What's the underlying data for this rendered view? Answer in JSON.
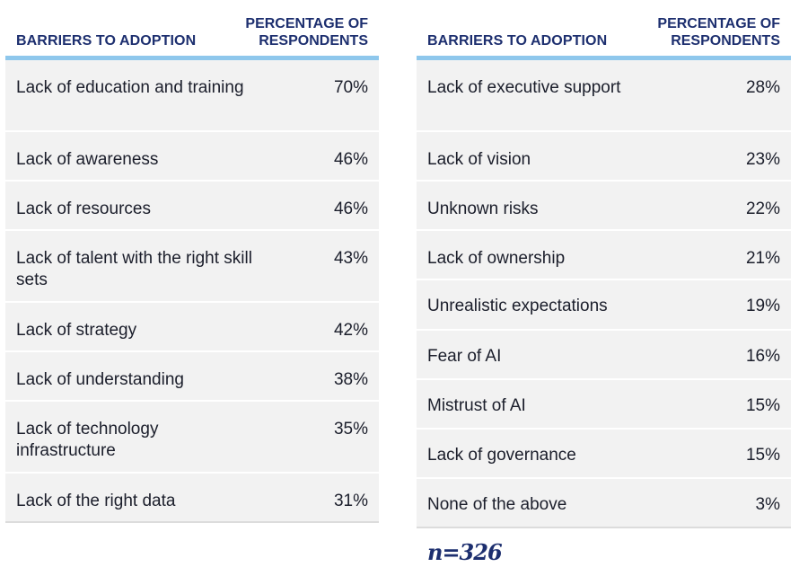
{
  "left_table": {
    "header": {
      "col1": "BARRIERS TO ADOPTION",
      "col2_line1": "PERCENTAGE OF",
      "col2_line2": "RESPONDENTS"
    },
    "rows": [
      {
        "label": "Lack of education and training",
        "value": "70%"
      },
      {
        "label": "Lack of awareness",
        "value": "46%"
      },
      {
        "label": "Lack of resources",
        "value": "46%"
      },
      {
        "label": "Lack of talent with the right skill sets",
        "value": "43%"
      },
      {
        "label": "Lack of strategy",
        "value": "42%"
      },
      {
        "label": "Lack of understanding",
        "value": "38%"
      },
      {
        "label": "Lack of technology infrastructure",
        "value": "35%"
      },
      {
        "label": "Lack of the right data",
        "value": "31%"
      }
    ]
  },
  "right_table": {
    "header": {
      "col1": "BARRIERS TO ADOPTION",
      "col2_line1": "PERCENTAGE OF",
      "col2_line2": "RESPONDENTS"
    },
    "rows": [
      {
        "label": "Lack of executive support",
        "value": "28%"
      },
      {
        "label": "Lack of vision",
        "value": "23%"
      },
      {
        "label": "Unknown risks",
        "value": "22%"
      },
      {
        "label": "Lack of ownership",
        "value": "21%"
      },
      {
        "label": "Unrealistic expectations",
        "value": "19%"
      },
      {
        "label": "Fear of AI",
        "value": "16%"
      },
      {
        "label": "Mistrust of AI",
        "value": "15%"
      },
      {
        "label": "Lack of governance",
        "value": "15%"
      },
      {
        "label": "None of the above",
        "value": "3%"
      }
    ]
  },
  "footnote": "n=326",
  "colors": {
    "header_text": "#1d2f6f",
    "header_rule": "#8ec7ec",
    "row_bg": "#f2f2f2"
  }
}
